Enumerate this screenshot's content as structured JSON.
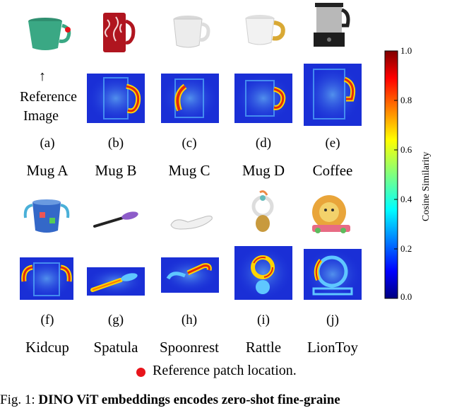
{
  "reference": {
    "arrow": "↑",
    "line1": "Reference",
    "line2": "Image"
  },
  "row1": [
    {
      "sub": "(a)",
      "name": "Mug A"
    },
    {
      "sub": "(b)",
      "name": "Mug B"
    },
    {
      "sub": "(c)",
      "name": "Mug C"
    },
    {
      "sub": "(d)",
      "name": "Mug D"
    },
    {
      "sub": "(e)",
      "name": "Coffee"
    }
  ],
  "row2": [
    {
      "sub": "(f)",
      "name": "Kidcup"
    },
    {
      "sub": "(g)",
      "name": "Spatula"
    },
    {
      "sub": "(h)",
      "name": "Spoonrest"
    },
    {
      "sub": "(i)",
      "name": "Rattle"
    },
    {
      "sub": "(j)",
      "name": "LionToy"
    }
  ],
  "colorbar": {
    "label": "Cosine Similarity",
    "ticks": [
      "1.0",
      "0.8",
      "0.6",
      "0.4",
      "0.2",
      "0.0"
    ],
    "range": [
      0.0,
      1.0
    ],
    "colormap": "jet"
  },
  "legend": {
    "marker_color": "#e8141b",
    "text": "Reference patch location."
  },
  "caption": {
    "prefix": "Fig. 1: ",
    "bold": "DINO ViT embeddings encodes zero-shot fine-graine"
  },
  "colors": {
    "heat_low": "#1a2fd6",
    "heat_high": "#d01010"
  }
}
